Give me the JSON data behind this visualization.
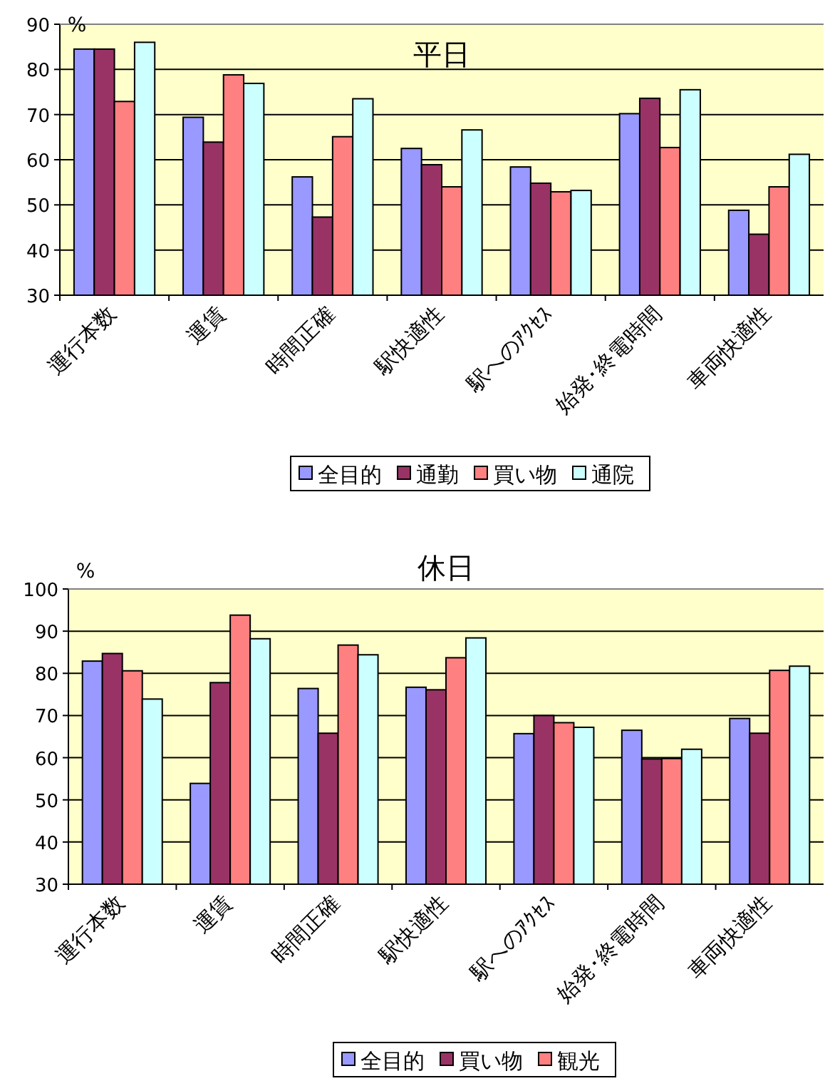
{
  "chart_data": [
    {
      "type": "bar",
      "title": "平日",
      "ylabel": "%",
      "categories": [
        "運行本数",
        "運賃",
        "時間正確",
        "駅快適性",
        "駅へのｱｸｾｽ",
        "始発･終電時間",
        "車両快適性"
      ],
      "series": [
        {
          "name": "全目的",
          "color": "#9999ff",
          "values": [
            84.5,
            69.4,
            56.2,
            62.5,
            58.4,
            70.2,
            48.8
          ]
        },
        {
          "name": "通勤",
          "color": "#993366",
          "values": [
            84.5,
            63.9,
            47.3,
            58.9,
            54.8,
            73.6,
            43.5
          ]
        },
        {
          "name": "買い物",
          "color": "#ff8080",
          "values": [
            72.9,
            78.8,
            65.1,
            54.0,
            52.9,
            62.7,
            54.0
          ]
        },
        {
          "name": "通院",
          "color": "#ccffff",
          "values": [
            86.0,
            76.9,
            73.5,
            66.6,
            53.2,
            75.5,
            61.2
          ]
        }
      ],
      "ylim": [
        30,
        90
      ],
      "yticks": [
        30,
        40,
        50,
        60,
        70,
        80,
        90
      ],
      "grid": "y",
      "legend": "bottom"
    },
    {
      "type": "bar",
      "title": "休日",
      "ylabel": "%",
      "categories": [
        "運行本数",
        "運賃",
        "時間正確",
        "駅快適性",
        "駅へのｱｸｾｽ",
        "始発･終電時間",
        "車両快適性"
      ],
      "series": [
        {
          "name": "全目的",
          "color": "#9999ff",
          "values": [
            82.9,
            53.9,
            76.4,
            76.7,
            65.7,
            66.5,
            69.3
          ]
        },
        {
          "name": "買い物",
          "color": "#993366",
          "values": [
            84.7,
            77.8,
            65.8,
            76.1,
            70.0,
            59.7,
            65.8
          ]
        },
        {
          "name": "観光",
          "color": "#ff8080",
          "values": [
            80.6,
            93.8,
            86.7,
            83.7,
            68.3,
            59.8,
            80.7
          ]
        },
        {
          "color": "#ccffff",
          "values": [
            73.9,
            88.2,
            84.4,
            88.4,
            67.2,
            62.0,
            81.7
          ]
        }
      ],
      "ylim": [
        30,
        100
      ],
      "yticks": [
        30,
        40,
        50,
        60,
        70,
        80,
        90,
        100
      ],
      "grid": "y",
      "legend": "bottom"
    }
  ]
}
